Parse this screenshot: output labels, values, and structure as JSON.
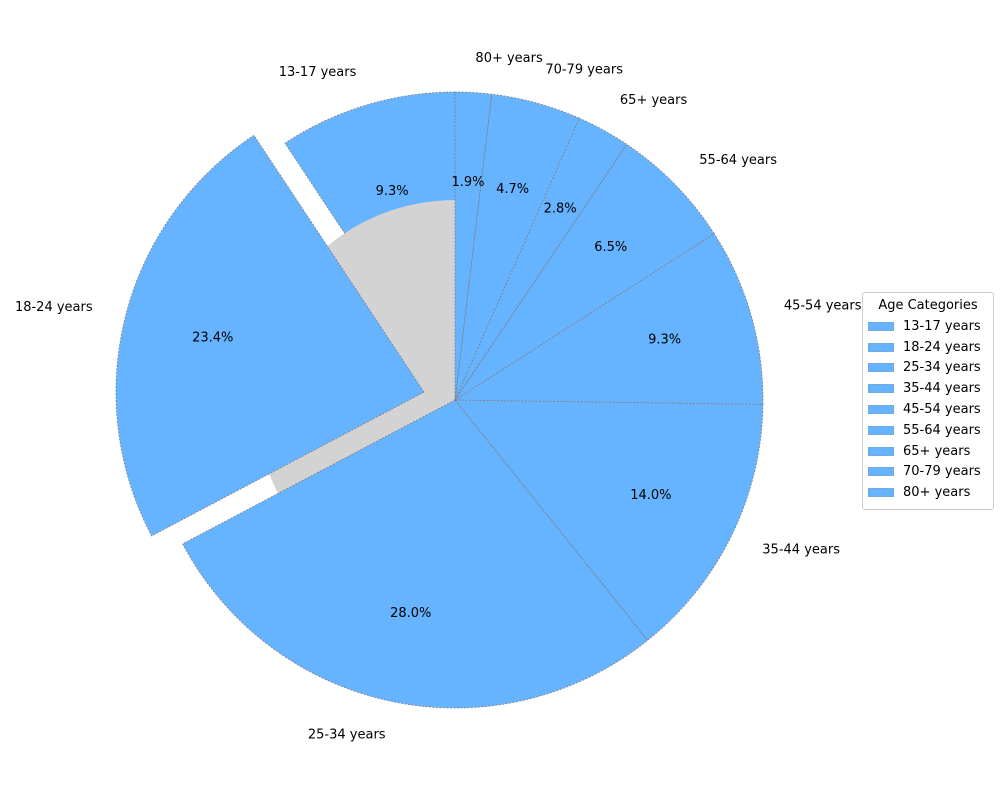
{
  "chart_data": {
    "type": "pie",
    "title": "",
    "categories": [
      "13-17 years",
      "18-24 years",
      "25-34 years",
      "35-44 years",
      "45-54 years",
      "55-64 years",
      "65+ years",
      "70-79 years",
      "80+ years"
    ],
    "values": [
      9.3,
      23.4,
      28.0,
      14.0,
      9.3,
      6.5,
      2.8,
      4.7,
      1.9
    ],
    "value_labels": [
      "9.3%",
      "23.4%",
      "28.0%",
      "14.0%",
      "9.3%",
      "6.5%",
      "2.8%",
      "4.7%",
      "1.9%"
    ],
    "exploded": "18-24 years",
    "donut": true,
    "center_color": "#d3d3d3",
    "slice_color": "#66b3ff",
    "edge_color": "#808080",
    "legend": {
      "title": "Age Categories",
      "placement": "right"
    }
  }
}
